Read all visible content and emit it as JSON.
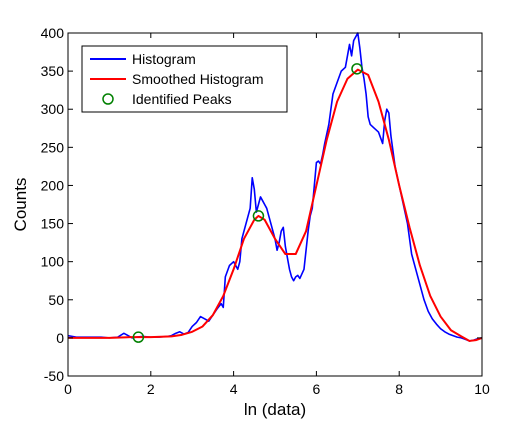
{
  "chart_data": {
    "type": "line",
    "title": "",
    "xlabel": "ln (data)",
    "ylabel": "Counts",
    "xlim": [
      0,
      10
    ],
    "ylim": [
      -50,
      400
    ],
    "xticks": [
      0,
      2,
      4,
      6,
      8,
      10
    ],
    "yticks": [
      -50,
      0,
      50,
      100,
      150,
      200,
      250,
      300,
      350,
      400
    ],
    "grid": false,
    "legend_position": "top-left",
    "series": [
      {
        "name": "Histogram",
        "kind": "line",
        "color": "#0000ff",
        "x": [
          0.0,
          0.2,
          0.4,
          0.6,
          0.8,
          1.0,
          1.2,
          1.35,
          1.45,
          1.55,
          1.65,
          1.8,
          2.0,
          2.2,
          2.4,
          2.5,
          2.6,
          2.7,
          2.8,
          2.9,
          3.0,
          3.1,
          3.2,
          3.3,
          3.4,
          3.5,
          3.6,
          3.7,
          3.75,
          3.8,
          3.9,
          4.0,
          4.1,
          4.15,
          4.2,
          4.3,
          4.4,
          4.45,
          4.5,
          4.55,
          4.6,
          4.65,
          4.7,
          4.75,
          4.8,
          4.9,
          5.0,
          5.05,
          5.1,
          5.15,
          5.2,
          5.25,
          5.3,
          5.35,
          5.4,
          5.45,
          5.5,
          5.55,
          5.6,
          5.7,
          5.8,
          5.85,
          5.9,
          5.95,
          6.0,
          6.05,
          6.1,
          6.15,
          6.2,
          6.3,
          6.35,
          6.4,
          6.5,
          6.6,
          6.7,
          6.8,
          6.85,
          6.9,
          7.0,
          7.05,
          7.1,
          7.15,
          7.2,
          7.25,
          7.3,
          7.4,
          7.5,
          7.6,
          7.65,
          7.7,
          7.75,
          7.8,
          7.85,
          7.9,
          8.0,
          8.1,
          8.2,
          8.25,
          8.3,
          8.4,
          8.5,
          8.6,
          8.7,
          8.8,
          8.9,
          9.0,
          9.1,
          9.2,
          9.3,
          9.4,
          9.5,
          9.6,
          9.7,
          9.8,
          9.9,
          10.0
        ],
        "y": [
          3,
          1,
          1,
          1,
          1,
          0,
          1,
          6,
          3,
          0,
          1,
          2,
          1,
          1,
          2,
          3,
          6,
          8,
          5,
          7,
          15,
          20,
          28,
          25,
          22,
          30,
          38,
          45,
          40,
          80,
          95,
          100,
          90,
          100,
          130,
          150,
          170,
          210,
          195,
          165,
          175,
          185,
          180,
          175,
          170,
          150,
          130,
          115,
          125,
          140,
          145,
          120,
          105,
          90,
          80,
          75,
          80,
          82,
          78,
          90,
          140,
          160,
          170,
          200,
          230,
          232,
          228,
          240,
          255,
          280,
          300,
          320,
          335,
          350,
          355,
          385,
          370,
          390,
          400,
          380,
          355,
          340,
          320,
          290,
          280,
          275,
          270,
          255,
          285,
          300,
          295,
          265,
          245,
          225,
          200,
          175,
          150,
          130,
          110,
          90,
          70,
          50,
          35,
          25,
          18,
          12,
          8,
          5,
          3,
          1,
          0,
          -2,
          -4,
          -3,
          -1,
          0
        ]
      },
      {
        "name": "Smoothed Histogram",
        "kind": "line",
        "color": "#ff0000",
        "x": [
          0.0,
          0.5,
          1.0,
          1.5,
          2.0,
          2.5,
          2.75,
          3.0,
          3.25,
          3.5,
          3.75,
          4.0,
          4.25,
          4.5,
          4.6,
          4.75,
          5.0,
          5.25,
          5.5,
          5.75,
          6.0,
          6.25,
          6.5,
          6.75,
          7.0,
          7.25,
          7.5,
          7.75,
          8.0,
          8.25,
          8.5,
          8.75,
          9.0,
          9.25,
          9.5,
          9.7,
          9.85,
          10.0
        ],
        "y": [
          0,
          0,
          0,
          1,
          1,
          2,
          4,
          8,
          15,
          30,
          55,
          90,
          130,
          155,
          160,
          155,
          130,
          110,
          110,
          140,
          200,
          260,
          310,
          340,
          352,
          345,
          310,
          260,
          200,
          145,
          95,
          55,
          28,
          10,
          2,
          -4,
          -3,
          0
        ]
      },
      {
        "name": "Identified Peaks",
        "kind": "marker",
        "color": "#008000",
        "x": [
          1.7,
          4.6,
          6.98
        ],
        "y": [
          1,
          160,
          353
        ]
      }
    ]
  }
}
